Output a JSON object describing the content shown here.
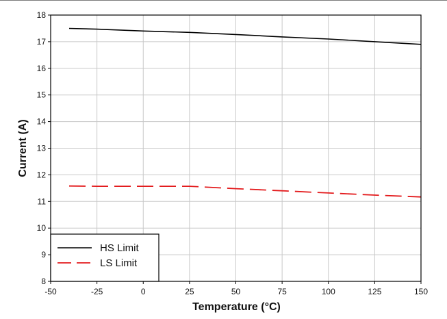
{
  "chart_data": {
    "type": "line",
    "xlabel": "Temperature (°C)",
    "ylabel": "Current (A)",
    "xlim": [
      -50,
      150
    ],
    "ylim": [
      8,
      18
    ],
    "xticks": [
      -50,
      -25,
      0,
      25,
      50,
      75,
      100,
      125,
      150
    ],
    "yticks": [
      8,
      9,
      10,
      11,
      12,
      13,
      14,
      15,
      16,
      17,
      18
    ],
    "grid": true,
    "legend_position": "bottom-left",
    "series": [
      {
        "name": "HS Limit",
        "color": "#000000",
        "style": "solid",
        "x": [
          -40,
          -25,
          0,
          25,
          50,
          75,
          100,
          125,
          150
        ],
        "y": [
          17.5,
          17.47,
          17.4,
          17.35,
          17.27,
          17.18,
          17.1,
          17.0,
          16.9
        ]
      },
      {
        "name": "LS Limit",
        "color": "#e31a1c",
        "style": "dashed",
        "x": [
          -40,
          -25,
          0,
          25,
          50,
          75,
          100,
          125,
          150
        ],
        "y": [
          11.58,
          11.57,
          11.57,
          11.57,
          11.48,
          11.4,
          11.32,
          11.24,
          11.17
        ]
      }
    ]
  }
}
